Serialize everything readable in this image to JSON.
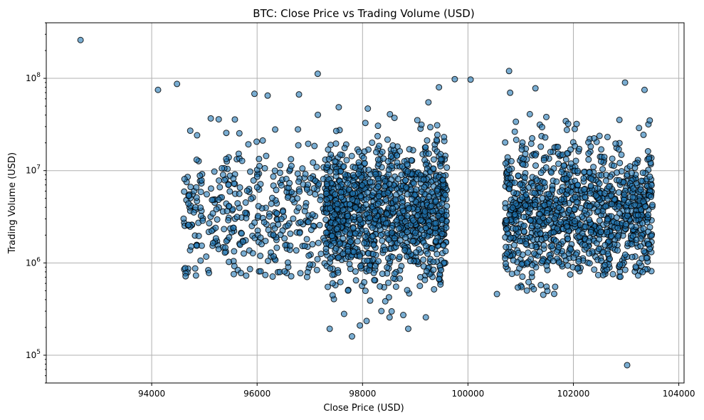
{
  "chart_data": {
    "type": "scatter",
    "title": "BTC: Close Price vs Trading Volume (USD)",
    "xlabel": "Close Price (USD)",
    "ylabel": "Trading Volume (USD)",
    "xlim": [
      92000,
      104100
    ],
    "ylim": [
      50000,
      400000000
    ],
    "y_scale": "log",
    "grid": true,
    "x_ticks": [
      94000,
      96000,
      98000,
      100000,
      102000,
      104000
    ],
    "x_tick_labels": [
      "94000",
      "96000",
      "98000",
      "100000",
      "102000",
      "104000"
    ],
    "y_ticks": [
      100000,
      1000000,
      10000000,
      100000000
    ],
    "y_tick_labels": [
      "10^5",
      "10^6",
      "10^7",
      "10^8"
    ],
    "marker_color": "#1f77b4",
    "clusters": [
      {
        "x_range": [
          94600,
          97600
        ],
        "y_range": [
          700000,
          70000000
        ],
        "count": 420
      },
      {
        "x_range": [
          97300,
          99600
        ],
        "y_range": [
          160000,
          50000000
        ],
        "count": 1100
      },
      {
        "x_range": [
          100700,
          102000
        ],
        "y_range": [
          450000,
          80000000
        ],
        "count": 520
      },
      {
        "x_range": [
          102000,
          103500
        ],
        "y_range": [
          700000,
          90000000
        ],
        "count": 560
      }
    ],
    "points": [
      {
        "x": 92650,
        "y": 260000000
      },
      {
        "x": 94120,
        "y": 75000000
      },
      {
        "x": 94480,
        "y": 87000000
      },
      {
        "x": 97150,
        "y": 112000000
      },
      {
        "x": 99750,
        "y": 98000000
      },
      {
        "x": 100050,
        "y": 97000000
      },
      {
        "x": 100780,
        "y": 120000000
      },
      {
        "x": 101280,
        "y": 78000000
      },
      {
        "x": 102980,
        "y": 90000000
      },
      {
        "x": 103350,
        "y": 75000000
      },
      {
        "x": 99450,
        "y": 80000000
      },
      {
        "x": 95950,
        "y": 68000000
      },
      {
        "x": 96200,
        "y": 65000000
      },
      {
        "x": 99250,
        "y": 55000000
      },
      {
        "x": 97800,
        "y": 160000
      },
      {
        "x": 97950,
        "y": 210000
      },
      {
        "x": 103020,
        "y": 78000
      },
      {
        "x": 97650,
        "y": 280000
      },
      {
        "x": 98100,
        "y": 47000000
      },
      {
        "x": 100550,
        "y": 460000
      },
      {
        "x": 101150,
        "y": 620000
      }
    ]
  }
}
